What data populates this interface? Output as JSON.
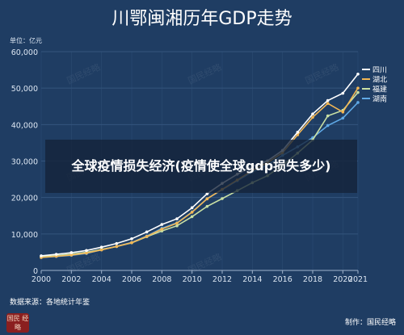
{
  "chart_data": {
    "type": "line",
    "title": "川鄂闽湘历年GDP走势",
    "unit_label": "单位：亿元",
    "x": [
      2000,
      2001,
      2002,
      2003,
      2004,
      2005,
      2006,
      2007,
      2008,
      2009,
      2010,
      2011,
      2012,
      2013,
      2014,
      2015,
      2016,
      2017,
      2018,
      2019,
      2020,
      2021
    ],
    "x_ticks": [
      "2000",
      "2002",
      "2004",
      "2006",
      "2008",
      "2010",
      "2012",
      "2014",
      "2016",
      "2018",
      "2020",
      "2021"
    ],
    "y_ticks": [
      "0",
      "10,000",
      "20,000",
      "30,000",
      "40,000",
      "50,000",
      "60,000"
    ],
    "ylim": [
      0,
      60000
    ],
    "xlim": [
      2000,
      2021
    ],
    "grid": true,
    "legend_position": "right",
    "series": [
      {
        "name": "四川",
        "color": "#ffffff",
        "values": [
          4010,
          4420,
          4880,
          5460,
          6380,
          7390,
          8690,
          10560,
          12600,
          14150,
          17190,
          21030,
          23870,
          26390,
          28540,
          30050,
          32930,
          37910,
          42900,
          46600,
          48600,
          53850
        ]
      },
      {
        "name": "湖北",
        "color": "#f2b654",
        "values": [
          3550,
          3880,
          4210,
          4760,
          5630,
          6590,
          7620,
          9330,
          11330,
          12960,
          15970,
          19630,
          22250,
          24790,
          27380,
          29550,
          32300,
          37200,
          42000,
          45800,
          43440,
          50010
        ]
      },
      {
        "name": "福建",
        "color": "#c9e0a4",
        "values": [
          3760,
          4070,
          4470,
          4980,
          5760,
          6550,
          7580,
          9250,
          10820,
          12240,
          14740,
          17560,
          19700,
          21870,
          24060,
          25980,
          28810,
          32180,
          35800,
          42400,
          43900,
          48810
        ]
      },
      {
        "name": "湖南",
        "color": "#5fa9e6",
        "values": [
          3550,
          3830,
          4150,
          4640,
          5640,
          6600,
          7690,
          9440,
          11560,
          13060,
          16040,
          19670,
          22150,
          24620,
          27040,
          28900,
          31550,
          33900,
          36400,
          39750,
          41780,
          46060
        ]
      }
    ]
  },
  "overlay": {
    "caption": "全球疫情损失经济(疫情使全球gdp损失多少)"
  },
  "footer": {
    "source": "数据来源：各地统计年鉴",
    "credit": "制作：国民经略",
    "logo_text": "国民 经略"
  },
  "watermark": "国民经略",
  "colors": {
    "background": "#1f3d63",
    "grid": "#34557d",
    "text": "#ffffff",
    "axis_text": "#dce6f2"
  }
}
